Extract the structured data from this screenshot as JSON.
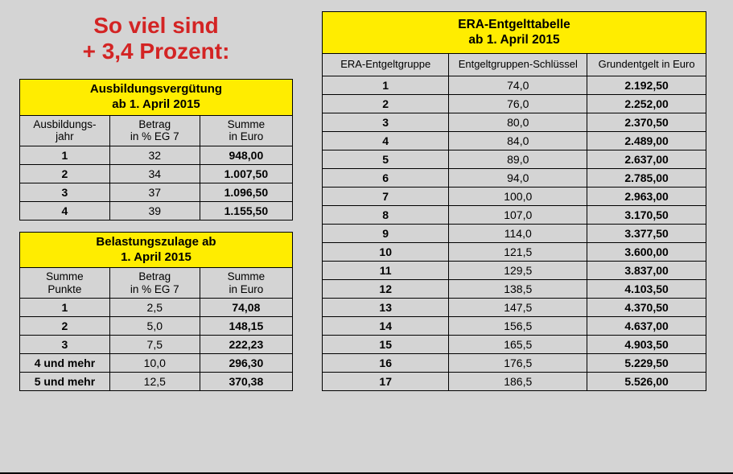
{
  "colors": {
    "background": "#d4d4d4",
    "accent_red": "#d32424",
    "highlight_yellow": "#ffed00",
    "border": "#000000"
  },
  "headline": {
    "line1": "So viel sind",
    "line2": "+ 3,4 Prozent:"
  },
  "ausbildung": {
    "title_l1": "Ausbildungsvergütung",
    "title_l2": "ab 1. April 2015",
    "col1_l1": "Ausbildungs-",
    "col1_l2": "jahr",
    "col2_l1": "Betrag",
    "col2_l2": "in % EG 7",
    "col3_l1": "Summe",
    "col3_l2": "in Euro",
    "rows": [
      {
        "k": "1",
        "p": "32",
        "v": "948,00"
      },
      {
        "k": "2",
        "p": "34",
        "v": "1.007,50"
      },
      {
        "k": "3",
        "p": "37",
        "v": "1.096,50"
      },
      {
        "k": "4",
        "p": "39",
        "v": "1.155,50"
      }
    ]
  },
  "belastung": {
    "title_l1": "Belastungszulage ab",
    "title_l2": "1. April 2015",
    "col1_l1": "Summe",
    "col1_l2": "Punkte",
    "col2_l1": "Betrag",
    "col2_l2": "in % EG 7",
    "col3_l1": "Summe",
    "col3_l2": "in Euro",
    "rows": [
      {
        "k": "1",
        "p": "2,5",
        "v": "74,08"
      },
      {
        "k": "2",
        "p": "5,0",
        "v": "148,15"
      },
      {
        "k": "3",
        "p": "7,5",
        "v": "222,23"
      },
      {
        "k": "4 und mehr",
        "p": "10,0",
        "v": "296,30"
      },
      {
        "k": "5 und mehr",
        "p": "12,5",
        "v": "370,38"
      }
    ]
  },
  "era": {
    "title_l1": "ERA-Entgelttabelle",
    "title_l2": "ab 1. April 2015",
    "col1": "ERA-Entgeltgruppe",
    "col2": "Entgeltgruppen-Schlüssel",
    "col3": "Grundentgelt in Euro",
    "rows": [
      {
        "k": "1",
        "p": "74,0",
        "v": "2.192,50"
      },
      {
        "k": "2",
        "p": "76,0",
        "v": "2.252,00"
      },
      {
        "k": "3",
        "p": "80,0",
        "v": "2.370,50"
      },
      {
        "k": "4",
        "p": "84,0",
        "v": "2.489,00"
      },
      {
        "k": "5",
        "p": "89,0",
        "v": "2.637,00"
      },
      {
        "k": "6",
        "p": "94,0",
        "v": "2.785,00"
      },
      {
        "k": "7",
        "p": "100,0",
        "v": "2.963,00"
      },
      {
        "k": "8",
        "p": "107,0",
        "v": "3.170,50"
      },
      {
        "k": "9",
        "p": "114,0",
        "v": "3.377,50"
      },
      {
        "k": "10",
        "p": "121,5",
        "v": "3.600,00"
      },
      {
        "k": "11",
        "p": "129,5",
        "v": "3.837,00"
      },
      {
        "k": "12",
        "p": "138,5",
        "v": "4.103,50"
      },
      {
        "k": "13",
        "p": "147,5",
        "v": "4.370,50"
      },
      {
        "k": "14",
        "p": "156,5",
        "v": "4.637,00"
      },
      {
        "k": "15",
        "p": "165,5",
        "v": "4.903,50"
      },
      {
        "k": "16",
        "p": "176,5",
        "v": "5.229,50"
      },
      {
        "k": "17",
        "p": "186,5",
        "v": "5.526,00"
      }
    ]
  }
}
